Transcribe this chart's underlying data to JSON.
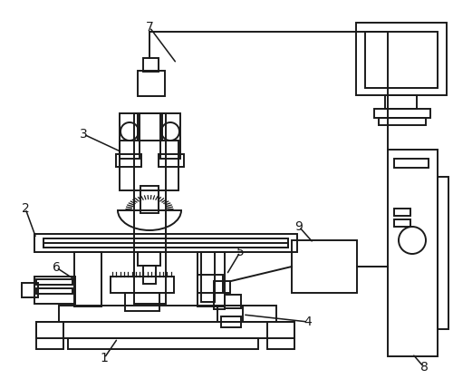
{
  "bg_color": "#ffffff",
  "line_color": "#1a1a1a",
  "line_width": 1.4,
  "label_fontsize": 10
}
